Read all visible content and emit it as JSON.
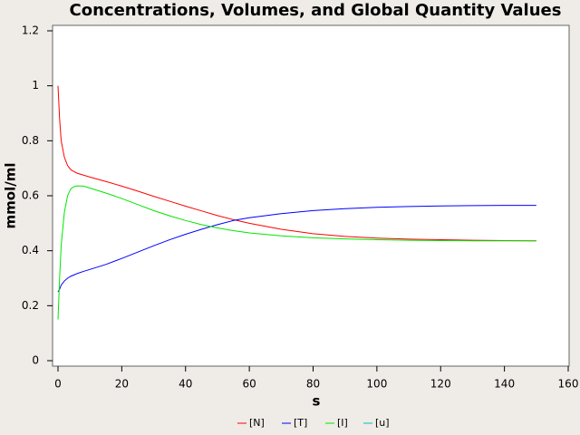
{
  "chart_data": {
    "type": "line",
    "title": "Concentrations, Volumes, and Global Quantity Values",
    "x_label": "s",
    "y_label": "mmol/ml",
    "x": [
      0,
      0.5,
      1,
      2,
      3,
      4,
      5,
      6,
      8,
      10,
      15,
      20,
      25,
      30,
      35,
      40,
      45,
      50,
      55,
      60,
      70,
      80,
      90,
      100,
      110,
      120,
      130,
      140,
      150
    ],
    "series": [
      {
        "name": "[N]",
        "color": "#ff0000",
        "values": [
          1.0,
          0.88,
          0.8,
          0.74,
          0.71,
          0.695,
          0.688,
          0.682,
          0.675,
          0.668,
          0.652,
          0.635,
          0.617,
          0.598,
          0.58,
          0.562,
          0.545,
          0.528,
          0.513,
          0.5,
          0.478,
          0.462,
          0.452,
          0.446,
          0.442,
          0.44,
          0.438,
          0.437,
          0.436
        ]
      },
      {
        "name": "[T]",
        "color": "#0000ff",
        "values": [
          0.25,
          0.26,
          0.275,
          0.29,
          0.3,
          0.307,
          0.312,
          0.317,
          0.325,
          0.332,
          0.35,
          0.372,
          0.395,
          0.418,
          0.44,
          0.46,
          0.478,
          0.495,
          0.51,
          0.52,
          0.535,
          0.546,
          0.553,
          0.558,
          0.561,
          0.563,
          0.564,
          0.565,
          0.565
        ]
      },
      {
        "name": "[I]",
        "color": "#00e600",
        "values": [
          0.15,
          0.3,
          0.42,
          0.54,
          0.6,
          0.625,
          0.633,
          0.636,
          0.635,
          0.628,
          0.61,
          0.59,
          0.568,
          0.546,
          0.527,
          0.51,
          0.495,
          0.483,
          0.473,
          0.465,
          0.454,
          0.447,
          0.443,
          0.44,
          0.438,
          0.437,
          0.436,
          0.436,
          0.436
        ]
      },
      {
        "name": "[u]",
        "color": "#00bfbf",
        "values": [
          null,
          null,
          null,
          null,
          null,
          null,
          null,
          null,
          null,
          null,
          null,
          null,
          null,
          null,
          null,
          null,
          null,
          null,
          null,
          null,
          null,
          null,
          null,
          null,
          null,
          null,
          null,
          null,
          null
        ]
      }
    ],
    "xlim": [
      0,
      160
    ],
    "xticks": [
      0,
      20,
      40,
      60,
      80,
      100,
      120,
      140,
      160
    ],
    "ylim": [
      0,
      1.2
    ],
    "yticks": [
      0,
      0.2,
      0.4,
      0.6,
      0.8,
      1,
      1.2
    ],
    "legend": "bottom"
  }
}
